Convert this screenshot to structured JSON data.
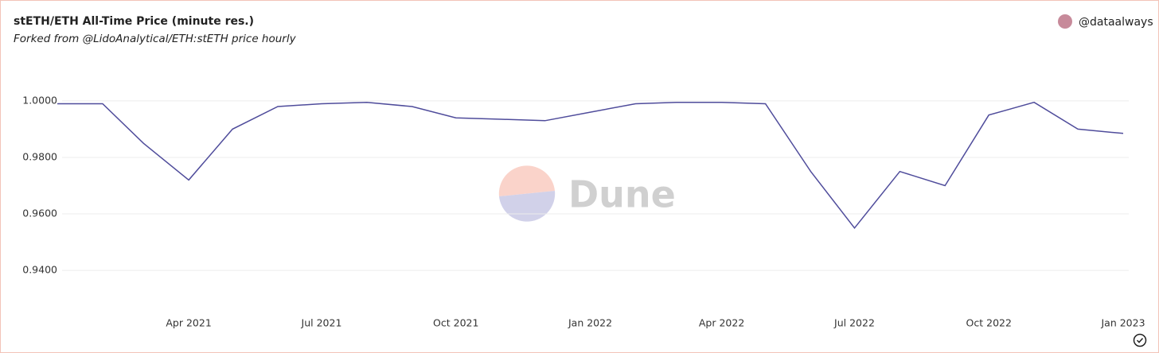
{
  "author": "@dataalways",
  "watermark": "Dune",
  "chart_data": {
    "type": "line",
    "title": "stETH/ETH All-Time Price (minute res.)",
    "subtitle": "Forked from @LidoAnalytical/ETH:stETH price hourly",
    "x": [
      "2021-01",
      "2021-02",
      "2021-03",
      "2021-04",
      "2021-05",
      "2021-06",
      "2021-07",
      "2021-08",
      "2021-09",
      "2021-10",
      "2021-11",
      "2021-12",
      "2022-01",
      "2022-02",
      "2022-03",
      "2022-04",
      "2022-05",
      "2022-06",
      "2022-07",
      "2022-08",
      "2022-09",
      "2022-10",
      "2022-11",
      "2022-12",
      "2023-01"
    ],
    "values": [
      0.999,
      0.999,
      0.985,
      0.972,
      0.99,
      0.998,
      0.999,
      0.9995,
      0.998,
      0.994,
      0.9935,
      0.993,
      0.996,
      0.999,
      0.9995,
      0.9995,
      0.999,
      0.975,
      0.955,
      0.975,
      0.97,
      0.995,
      0.9995,
      0.99,
      0.9885
    ],
    "color": "#4f4c9b",
    "xlim": [
      "2021-01",
      "2023-01"
    ],
    "xticks": [
      {
        "value": "2021-04",
        "label": "Apr 2021"
      },
      {
        "value": "2021-07",
        "label": "Jul 2021"
      },
      {
        "value": "2021-10",
        "label": "Oct 2021"
      },
      {
        "value": "2022-01",
        "label": "Jan 2022"
      },
      {
        "value": "2022-04",
        "label": "Apr 2022"
      },
      {
        "value": "2022-07",
        "label": "Jul 2022"
      },
      {
        "value": "2022-10",
        "label": "Oct 2022"
      },
      {
        "value": "2023-01",
        "label": "Jan 2023"
      }
    ],
    "ylim": [
      0.9254,
      1.0132
    ],
    "yticks": [
      {
        "value": 0.94,
        "label": "0.9400"
      },
      {
        "value": 0.96,
        "label": "0.9600"
      },
      {
        "value": 0.98,
        "label": "0.9800"
      },
      {
        "value": 1.0,
        "label": "1.0000"
      }
    ],
    "grid": true
  }
}
